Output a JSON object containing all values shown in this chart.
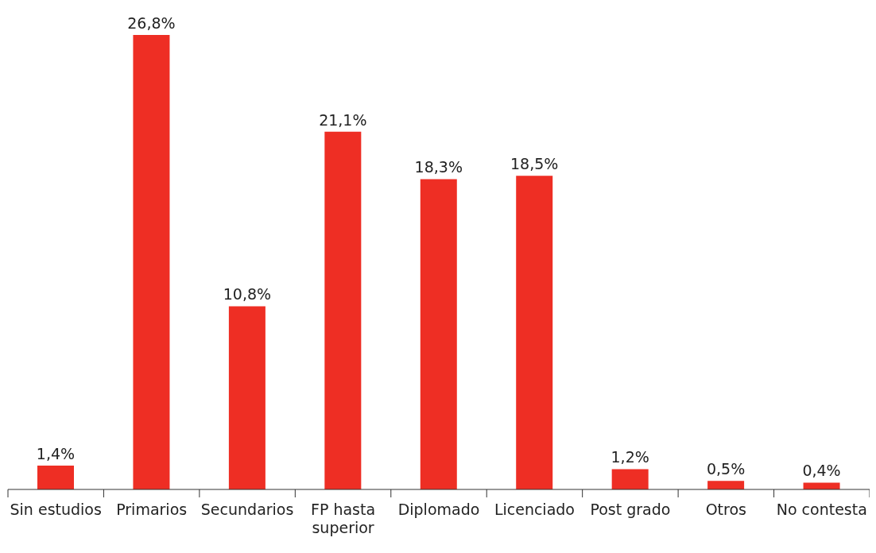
{
  "chart_data": {
    "type": "bar",
    "categories": [
      "Sin estudios",
      "Primarios",
      "Secundarios",
      "FP hasta superior",
      "Diplomado",
      "Licenciado",
      "Post grado",
      "Otros",
      "No contesta"
    ],
    "values": [
      1.4,
      26.8,
      10.8,
      21.1,
      18.3,
      18.5,
      1.2,
      0.5,
      0.4
    ],
    "value_labels": [
      "1,4%",
      "26,8%",
      "10,8%",
      "21,1%",
      "18,3%",
      "18,5%",
      "1,2%",
      "0,5%",
      "0,4%"
    ],
    "color": "#ee2e24",
    "tick_labels": "x",
    "grid": false
  }
}
